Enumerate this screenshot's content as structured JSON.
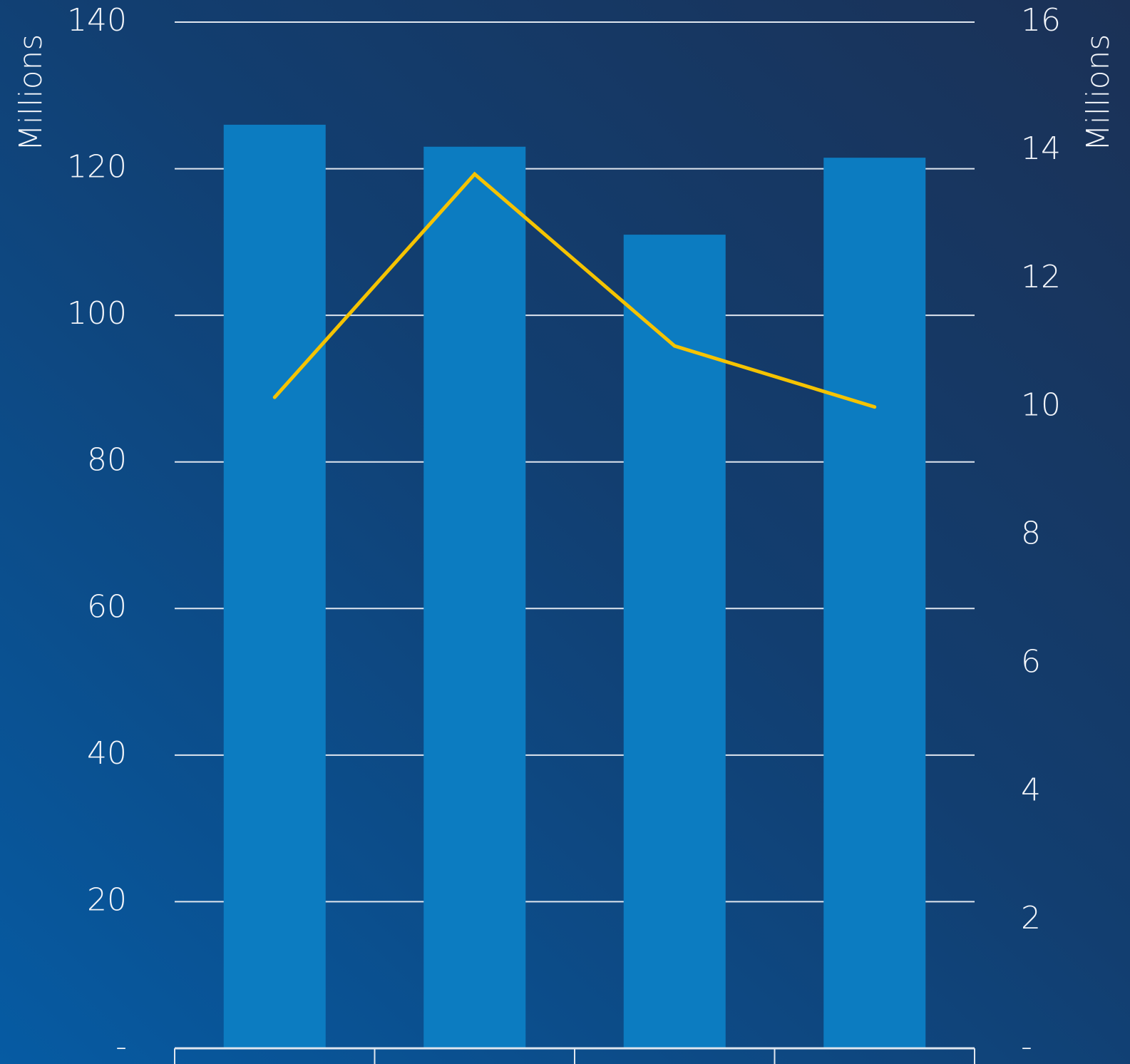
{
  "chart_data": {
    "type": "bar",
    "categories": [
      null,
      null,
      null,
      null
    ],
    "series": [
      {
        "color": "#0c7cc1",
        "values": [
          126,
          123,
          111,
          121.5
        ]
      },
      {
        "type": "line",
        "axis": "y2",
        "color": "#f5c300",
        "values": [
          10.15,
          13.63,
          10.95,
          10.0
        ]
      }
    ],
    "ylim": [
      0,
      140
    ],
    "yticks": [
      {
        "value": 0,
        "label": "-"
      },
      20,
      40,
      60,
      80,
      100,
      120,
      140
    ],
    "y2lim": [
      0,
      16
    ],
    "y2ticks": [
      {
        "value": 0,
        "label": "-"
      },
      2,
      4,
      6,
      8,
      10,
      12,
      14,
      16
    ],
    "ylabel": "Millions",
    "y2label": "Millions",
    "grid": true
  }
}
